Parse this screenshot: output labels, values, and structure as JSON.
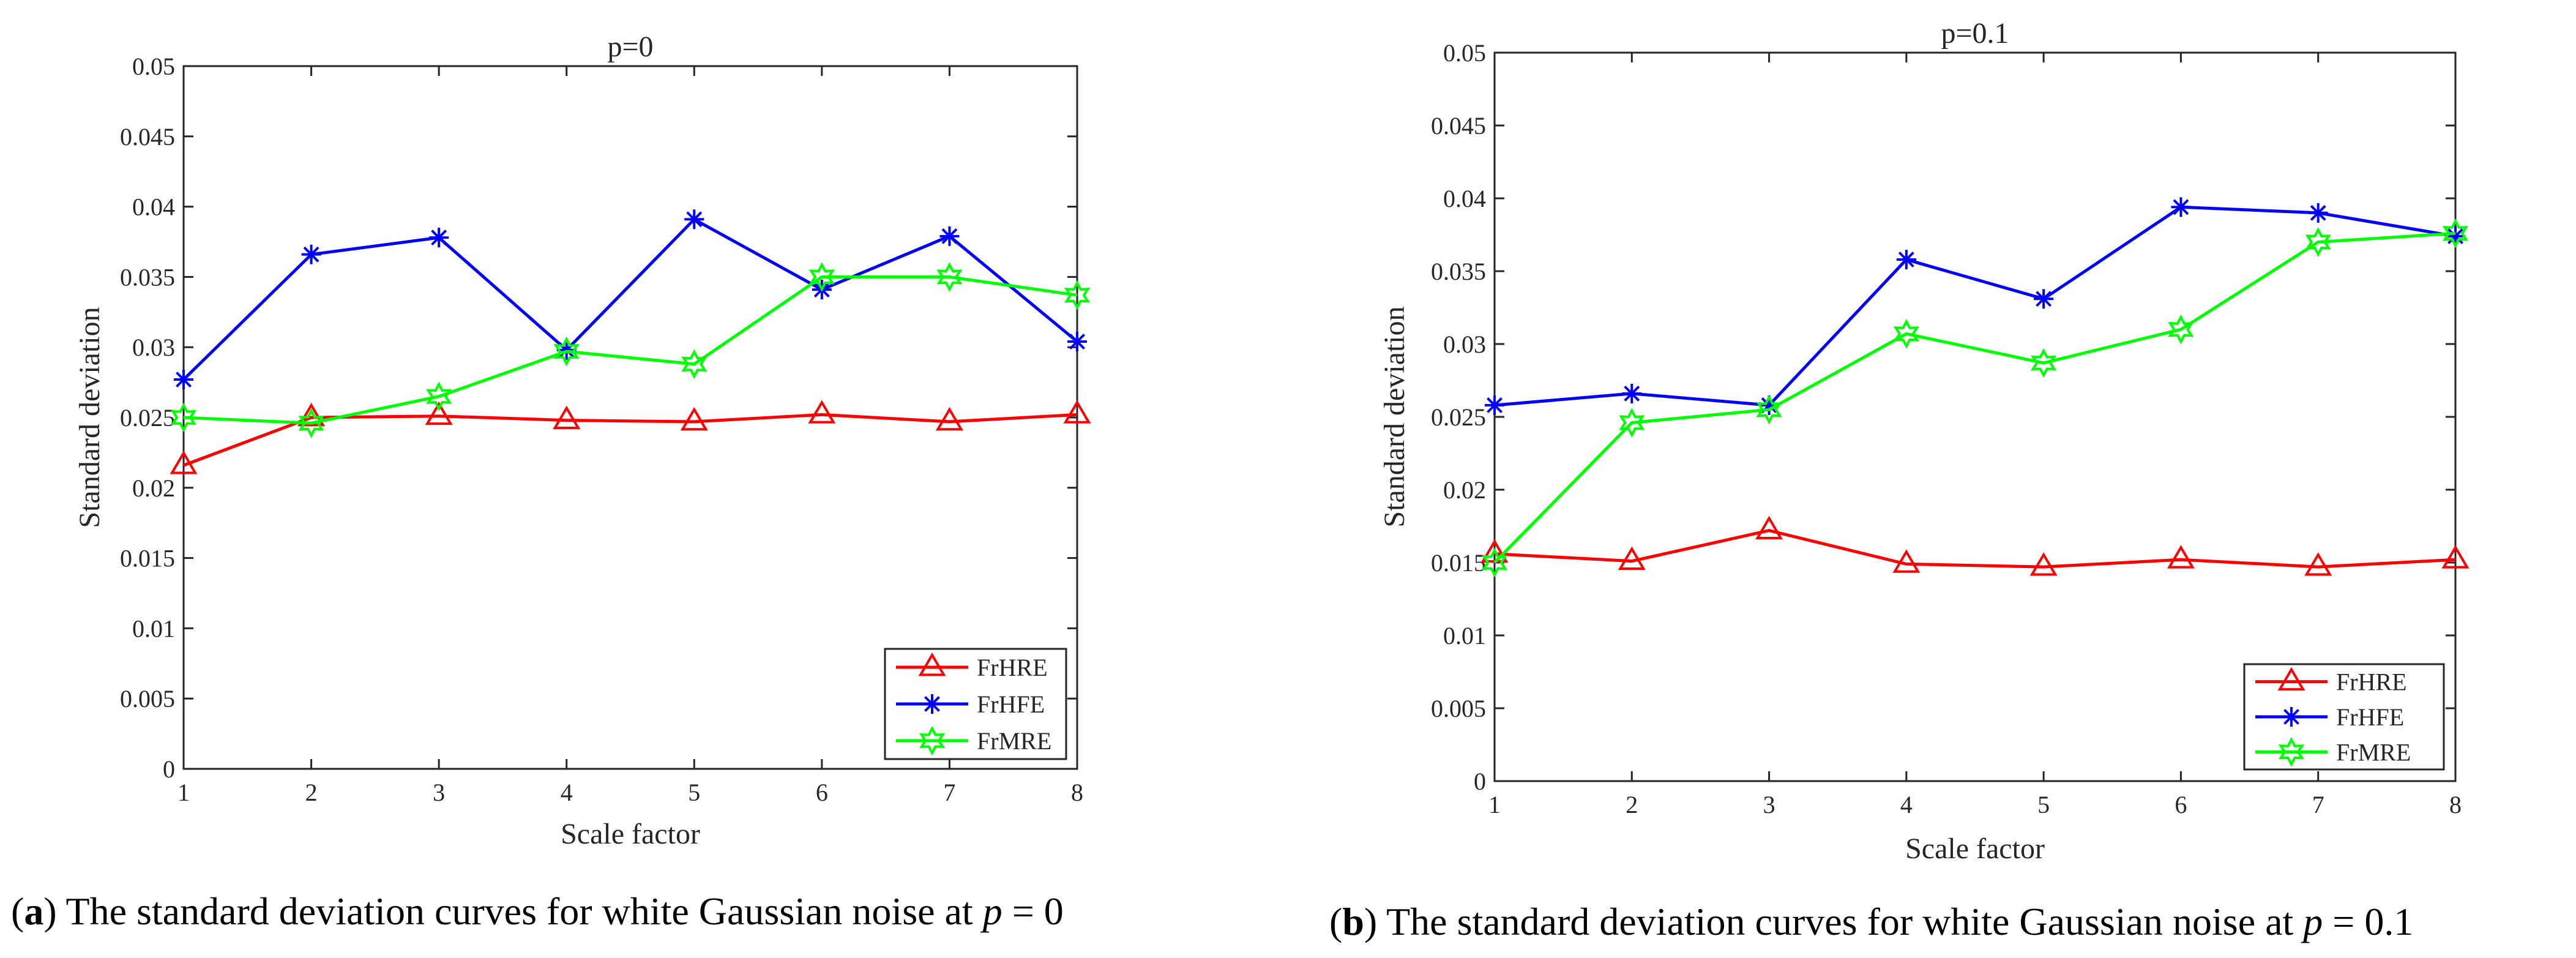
{
  "charts": [
    {
      "title": "p=0",
      "xlabel": "Scale factor",
      "ylabel": "Standard deviation",
      "caption": {
        "label": "a",
        "text": ") The standard deviation curves for white Gaussian noise at ",
        "var": "p",
        "value": " = 0"
      }
    },
    {
      "title": "p=0.1",
      "xlabel": "Scale factor",
      "ylabel": "Standard deviation",
      "caption": {
        "label": "b",
        "text": ") The standard deviation curves for white Gaussian noise at ",
        "var": "p",
        "value": " = 0.1"
      }
    }
  ],
  "chart_data": [
    {
      "type": "line",
      "title": "p=0",
      "xlabel": "Scale factor",
      "ylabel": "Standard deviation",
      "x": [
        1,
        2,
        3,
        4,
        5,
        6,
        7,
        8
      ],
      "xlim": [
        1,
        8
      ],
      "ylim": [
        0,
        0.05
      ],
      "xticks": [
        "1",
        "2",
        "3",
        "4",
        "5",
        "6",
        "7",
        "8"
      ],
      "yticks": [
        "0",
        "0.005",
        "0.01",
        "0.015",
        "0.02",
        "0.025",
        "0.03",
        "0.035",
        "0.04",
        "0.045",
        "0.05"
      ],
      "grid": false,
      "legend_position": "bottom-right",
      "series": [
        {
          "name": "FrHRE",
          "color": "#ff0000",
          "marker": "triangle",
          "values": [
            0.0216,
            0.025,
            0.0251,
            0.0248,
            0.0247,
            0.0252,
            0.0247,
            0.0252
          ]
        },
        {
          "name": "FrHFE",
          "color": "#0000ff",
          "marker": "star",
          "values": [
            0.0277,
            0.0366,
            0.0378,
            0.0298,
            0.0391,
            0.0341,
            0.0379,
            0.0304
          ]
        },
        {
          "name": "FrMRE",
          "color": "#00ff00",
          "marker": "hexagram",
          "values": [
            0.025,
            0.0246,
            0.0265,
            0.0297,
            0.0288,
            0.035,
            0.035,
            0.0337
          ]
        }
      ]
    },
    {
      "type": "line",
      "title": "p=0.1",
      "xlabel": "Scale factor",
      "ylabel": "Standard deviation",
      "x": [
        1,
        2,
        3,
        4,
        5,
        6,
        7,
        8
      ],
      "xlim": [
        1,
        8
      ],
      "ylim": [
        0,
        0.05
      ],
      "xticks": [
        "1",
        "2",
        "3",
        "4",
        "5",
        "6",
        "7",
        "8"
      ],
      "yticks": [
        "0",
        "0.005",
        "0.01",
        "0.015",
        "0.02",
        "0.025",
        "0.03",
        "0.035",
        "0.04",
        "0.045",
        "0.05"
      ],
      "grid": false,
      "legend_position": "bottom-right",
      "series": [
        {
          "name": "FrHRE",
          "color": "#ff0000",
          "marker": "triangle",
          "values": [
            0.0156,
            0.0151,
            0.0172,
            0.0149,
            0.0147,
            0.0152,
            0.0147,
            0.0152
          ]
        },
        {
          "name": "FrHFE",
          "color": "#0000ff",
          "marker": "star",
          "values": [
            0.0258,
            0.0266,
            0.0258,
            0.0358,
            0.0331,
            0.0394,
            0.039,
            0.0374
          ]
        },
        {
          "name": "FrMRE",
          "color": "#00ff00",
          "marker": "hexagram",
          "values": [
            0.015,
            0.0246,
            0.0255,
            0.0307,
            0.0287,
            0.031,
            0.037,
            0.0376
          ]
        }
      ]
    }
  ]
}
